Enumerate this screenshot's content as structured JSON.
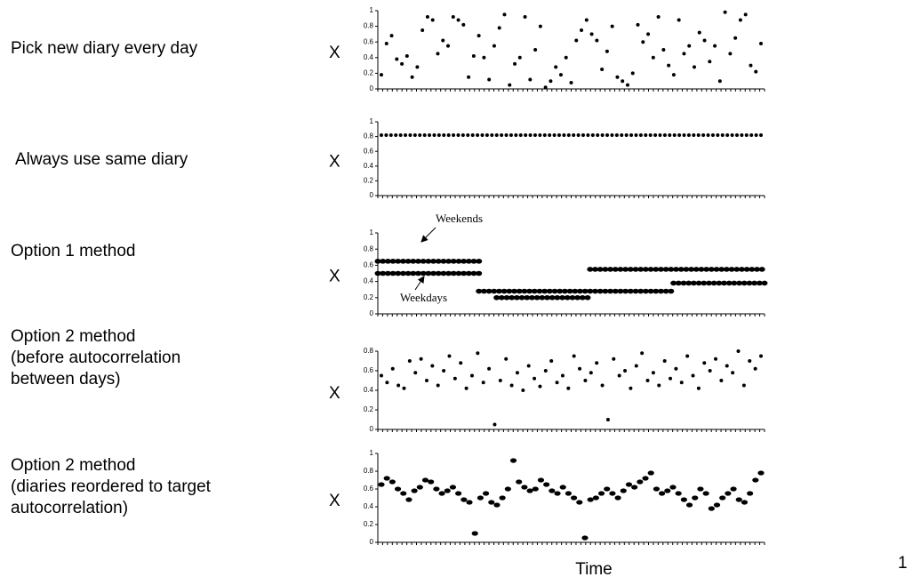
{
  "chart_data": [
    {
      "type": "scatter",
      "label_lines": [
        "Pick new diary every day"
      ],
      "ylabel": "X",
      "ylim": [
        0,
        1
      ],
      "yticks": [
        0,
        0.2,
        0.4,
        0.6,
        0.8,
        1
      ],
      "color": "#000000",
      "values": [
        0.18,
        0.58,
        0.68,
        0.38,
        0.32,
        0.42,
        0.15,
        0.28,
        0.75,
        0.92,
        0.88,
        0.45,
        0.62,
        0.55,
        0.92,
        0.88,
        0.82,
        0.15,
        0.42,
        0.68,
        0.4,
        0.12,
        0.55,
        0.78,
        0.95,
        0.05,
        0.32,
        0.4,
        0.92,
        0.12,
        0.5,
        0.8,
        0.02,
        0.1,
        0.28,
        0.18,
        0.4,
        0.08,
        0.62,
        0.75,
        0.88,
        0.7,
        0.62,
        0.25,
        0.48,
        0.8,
        0.15,
        0.1,
        0.05,
        0.2,
        0.82,
        0.6,
        0.7,
        0.4,
        0.92,
        0.5,
        0.3,
        0.18,
        0.88,
        0.45,
        0.55,
        0.28,
        0.72,
        0.62,
        0.35,
        0.55,
        0.1,
        0.98,
        0.45,
        0.65,
        0.88,
        0.95,
        0.3,
        0.22,
        0.58
      ]
    },
    {
      "type": "scatter",
      "label_lines": [
        "Always use same diary"
      ],
      "ylabel": "X",
      "ylim": [
        0,
        1
      ],
      "yticks": [
        0,
        0.2,
        0.4,
        0.6,
        0.8,
        1
      ],
      "color": "#000000",
      "values": [
        0.82,
        0.82,
        0.82,
        0.82,
        0.82,
        0.82,
        0.82,
        0.82,
        0.82,
        0.82,
        0.82,
        0.82,
        0.82,
        0.82,
        0.82,
        0.82,
        0.82,
        0.82,
        0.82,
        0.82,
        0.82,
        0.82,
        0.82,
        0.82,
        0.82,
        0.82,
        0.82,
        0.82,
        0.82,
        0.82,
        0.82,
        0.82,
        0.82,
        0.82,
        0.82,
        0.82,
        0.82,
        0.82,
        0.82,
        0.82,
        0.82,
        0.82,
        0.82,
        0.82,
        0.82,
        0.82,
        0.82,
        0.82,
        0.82,
        0.82,
        0.82,
        0.82,
        0.82,
        0.82,
        0.82,
        0.82,
        0.82,
        0.82,
        0.82,
        0.82,
        0.82,
        0.82,
        0.82,
        0.82,
        0.82,
        0.82,
        0.82,
        0.82,
        0.82,
        0.82,
        0.82,
        0.82,
        0.82,
        0.82,
        0.82,
        0.82,
        0.82,
        0.82,
        0.82,
        0.82
      ]
    },
    {
      "type": "segments",
      "label_lines": [
        "Option 1 method"
      ],
      "ylabel": "X",
      "ylim": [
        0,
        1
      ],
      "yticks": [
        0,
        0.2,
        0.4,
        0.6,
        0.8,
        1
      ],
      "xlim": [
        1,
        154
      ],
      "color": "#000000",
      "segments": [
        {
          "x": [
            1,
            42
          ],
          "value": 0.65
        },
        {
          "x": [
            1,
            42
          ],
          "value": 0.5
        },
        {
          "x": [
            41,
            84
          ],
          "value": 0.28
        },
        {
          "x": [
            48,
            84
          ],
          "value": 0.2
        },
        {
          "x": [
            85,
            154
          ],
          "value": 0.55
        },
        {
          "x": [
            85,
            117
          ],
          "value": 0.28
        },
        {
          "x": [
            118,
            154
          ],
          "value": 0.38
        }
      ],
      "annotations": [
        "Weekends",
        "Weekdays"
      ]
    },
    {
      "type": "scatter",
      "label_lines": [
        "Option 2 method",
        "(before autocorrelation",
        "between days)"
      ],
      "ylabel": "X",
      "ylim": [
        0,
        0.8
      ],
      "yticks": [
        0,
        0.2,
        0.4,
        0.6,
        0.8
      ],
      "color": "#000000",
      "values": [
        0.55,
        0.48,
        0.62,
        0.45,
        0.42,
        0.7,
        0.58,
        0.72,
        0.5,
        0.65,
        0.45,
        0.6,
        0.75,
        0.52,
        0.68,
        0.42,
        0.55,
        0.78,
        0.48,
        0.62,
        0.05,
        0.5,
        0.72,
        0.45,
        0.58,
        0.4,
        0.65,
        0.52,
        0.44,
        0.6,
        0.7,
        0.48,
        0.55,
        0.42,
        0.75,
        0.62,
        0.5,
        0.58,
        0.68,
        0.45,
        0.1,
        0.72,
        0.55,
        0.6,
        0.42,
        0.65,
        0.78,
        0.5,
        0.58,
        0.45,
        0.7,
        0.52,
        0.62,
        0.48,
        0.75,
        0.55,
        0.42,
        0.68,
        0.6,
        0.72,
        0.5,
        0.65,
        0.58,
        0.8,
        0.45,
        0.7,
        0.62,
        0.75
      ]
    },
    {
      "type": "scatter",
      "label_lines": [
        "Option 2 method",
        "(diaries reordered to target",
        "autocorrelation)"
      ],
      "ylabel": "X",
      "xlabel": "Time",
      "ylim": [
        0,
        1
      ],
      "yticks": [
        0,
        0.2,
        0.4,
        0.6,
        0.8,
        1
      ],
      "color": "#000000",
      "values": [
        0.65,
        0.72,
        0.68,
        0.6,
        0.55,
        0.48,
        0.58,
        0.62,
        0.7,
        0.68,
        0.6,
        0.55,
        0.58,
        0.62,
        0.55,
        0.48,
        0.45,
        0.1,
        0.5,
        0.55,
        0.45,
        0.42,
        0.5,
        0.6,
        0.92,
        0.68,
        0.62,
        0.58,
        0.6,
        0.7,
        0.65,
        0.58,
        0.55,
        0.62,
        0.55,
        0.5,
        0.45,
        0.05,
        0.48,
        0.5,
        0.55,
        0.6,
        0.55,
        0.5,
        0.58,
        0.65,
        0.62,
        0.68,
        0.72,
        0.78,
        0.6,
        0.55,
        0.58,
        0.62,
        0.55,
        0.48,
        0.42,
        0.5,
        0.6,
        0.55,
        0.38,
        0.42,
        0.5,
        0.55,
        0.6,
        0.48,
        0.45,
        0.55,
        0.7,
        0.78
      ]
    }
  ],
  "page_number": "1"
}
